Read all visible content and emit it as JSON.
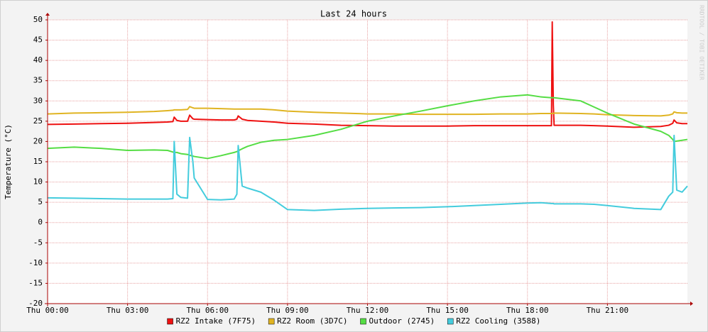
{
  "chart_data": {
    "type": "line",
    "title": "Last 24 hours",
    "ylabel": "Temperature (°C)",
    "watermark": "RRDTOOL / TOBI OETIKER",
    "x": [
      0,
      1,
      2,
      3,
      4,
      4.5,
      4.7,
      4.75,
      4.85,
      5,
      5.25,
      5.33,
      5.45,
      5.5,
      6,
      6.5,
      7,
      7.1,
      7.15,
      7.3,
      7.5,
      8,
      8.5,
      9,
      10,
      11,
      12,
      13,
      14,
      15,
      16,
      17,
      18,
      18.5,
      18.9,
      18.93,
      18.97,
      19,
      20,
      20.5,
      21,
      22,
      23,
      23.3,
      23.45,
      23.5,
      23.6,
      23.8,
      24
    ],
    "xlim": [
      0,
      24
    ],
    "xticks": [
      {
        "value": 0,
        "label": "Thu 00:00"
      },
      {
        "value": 3,
        "label": "Thu 03:00"
      },
      {
        "value": 6,
        "label": "Thu 06:00"
      },
      {
        "value": 9,
        "label": "Thu 09:00"
      },
      {
        "value": 12,
        "label": "Thu 12:00"
      },
      {
        "value": 15,
        "label": "Thu 15:00"
      },
      {
        "value": 18,
        "label": "Thu 18:00"
      },
      {
        "value": 21,
        "label": "Thu 21:00"
      }
    ],
    "ylim": [
      -20,
      50
    ],
    "yticks": [
      -20,
      -15,
      -10,
      -5,
      0,
      5,
      10,
      15,
      20,
      25,
      30,
      35,
      40,
      45,
      50
    ],
    "grid": true,
    "legend": "bottom",
    "series": [
      {
        "name": "RZ2 Intake (7F75)",
        "color": "#ee1111",
        "values": [
          24.2,
          24.3,
          24.4,
          24.5,
          24.7,
          24.8,
          24.9,
          26,
          25.2,
          25,
          25,
          26.5,
          25.6,
          25.5,
          25.4,
          25.3,
          25.3,
          25.5,
          26.3,
          25.5,
          25.2,
          25,
          24.8,
          24.5,
          24.3,
          24,
          23.9,
          23.8,
          23.8,
          23.8,
          23.9,
          23.9,
          23.9,
          23.9,
          23.9,
          49.5,
          29,
          24,
          24,
          23.9,
          23.8,
          23.5,
          23.7,
          24,
          24.5,
          25.3,
          24.6,
          24.4,
          24.4
        ]
      },
      {
        "name": "RZ2 Room (3D7C)",
        "color": "#e0b422",
        "values": [
          26.8,
          27,
          27.1,
          27.2,
          27.4,
          27.6,
          27.7,
          27.8,
          27.8,
          27.8,
          27.9,
          28.6,
          28.3,
          28.2,
          28.2,
          28.1,
          28,
          28,
          28,
          28,
          28,
          28,
          27.8,
          27.5,
          27.2,
          27,
          26.8,
          26.8,
          26.7,
          26.7,
          26.7,
          26.8,
          26.8,
          26.9,
          26.9,
          26.9,
          26.9,
          27,
          26.9,
          26.8,
          26.6,
          26.4,
          26.3,
          26.5,
          26.8,
          27.3,
          27.1,
          27,
          27
        ]
      },
      {
        "name": "Outdoor (2745)",
        "color": "#55dd44",
        "values": [
          18.3,
          18.6,
          18.3,
          17.8,
          17.9,
          17.8,
          17.4,
          17.3,
          17.3,
          17,
          16.8,
          16.6,
          16.4,
          16.3,
          15.8,
          16.5,
          17.3,
          17.5,
          17.7,
          18.2,
          18.8,
          19.8,
          20.3,
          20.5,
          21.5,
          23,
          25,
          26.3,
          27.5,
          28.8,
          30,
          31,
          31.5,
          31,
          30.8,
          30.8,
          30.8,
          30.8,
          30,
          28.5,
          27,
          24.3,
          22.5,
          21.5,
          20.5,
          20,
          20.1,
          20.3,
          20.5
        ]
      },
      {
        "name": "RZ2 Cooling (3588)",
        "color": "#44ccdd",
        "values": [
          6.1,
          6,
          5.9,
          5.8,
          5.8,
          5.8,
          5.9,
          20,
          7,
          6.2,
          6,
          21,
          15,
          11,
          5.7,
          5.6,
          5.8,
          7,
          19,
          9,
          8.5,
          7.5,
          5.5,
          3.2,
          3,
          3.3,
          3.5,
          3.6,
          3.7,
          3.9,
          4.2,
          4.5,
          4.8,
          4.9,
          4.7,
          4.7,
          4.7,
          4.6,
          4.6,
          4.5,
          4.2,
          3.5,
          3.2,
          6.5,
          7.5,
          21.5,
          8,
          7.5,
          9
        ]
      }
    ]
  }
}
